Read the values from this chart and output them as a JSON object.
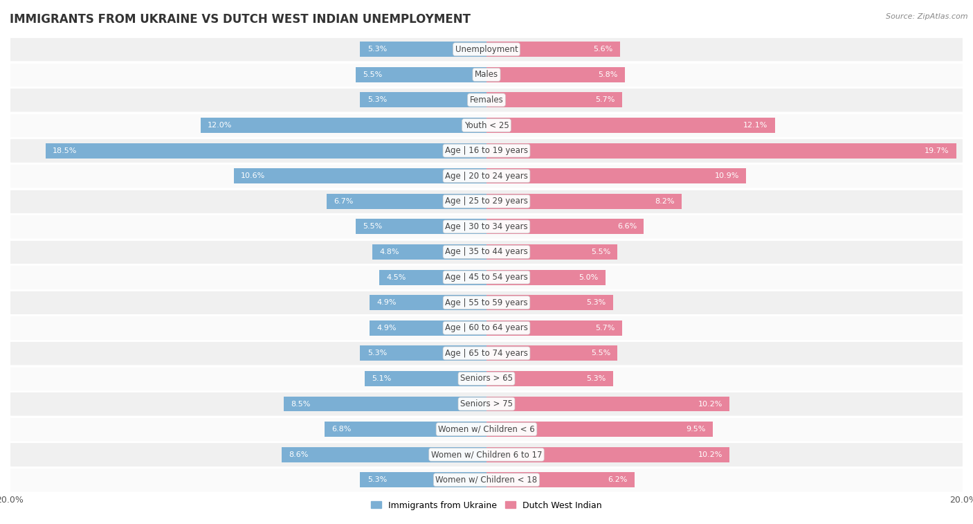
{
  "title": "IMMIGRANTS FROM UKRAINE VS DUTCH WEST INDIAN UNEMPLOYMENT",
  "source": "Source: ZipAtlas.com",
  "categories": [
    "Unemployment",
    "Males",
    "Females",
    "Youth < 25",
    "Age | 16 to 19 years",
    "Age | 20 to 24 years",
    "Age | 25 to 29 years",
    "Age | 30 to 34 years",
    "Age | 35 to 44 years",
    "Age | 45 to 54 years",
    "Age | 55 to 59 years",
    "Age | 60 to 64 years",
    "Age | 65 to 74 years",
    "Seniors > 65",
    "Seniors > 75",
    "Women w/ Children < 6",
    "Women w/ Children 6 to 17",
    "Women w/ Children < 18"
  ],
  "ukraine_values": [
    5.3,
    5.5,
    5.3,
    12.0,
    18.5,
    10.6,
    6.7,
    5.5,
    4.8,
    4.5,
    4.9,
    4.9,
    5.3,
    5.1,
    8.5,
    6.8,
    8.6,
    5.3
  ],
  "dutch_values": [
    5.6,
    5.8,
    5.7,
    12.1,
    19.7,
    10.9,
    8.2,
    6.6,
    5.5,
    5.0,
    5.3,
    5.7,
    5.5,
    5.3,
    10.2,
    9.5,
    10.2,
    6.2
  ],
  "ukraine_color": "#7bafd4",
  "dutch_color": "#e8849c",
  "ukraine_label": "Immigrants from Ukraine",
  "dutch_label": "Dutch West Indian",
  "xlim": 20.0,
  "bg_color": "#ffffff",
  "row_bg_odd": "#f0f0f0",
  "row_bg_even": "#fafafa",
  "title_fontsize": 12,
  "label_fontsize": 8.5,
  "value_fontsize": 8,
  "value_inside_color_ukraine": "#ffffff",
  "value_inside_color_dutch": "#ffffff",
  "value_outside_color": "#555555"
}
